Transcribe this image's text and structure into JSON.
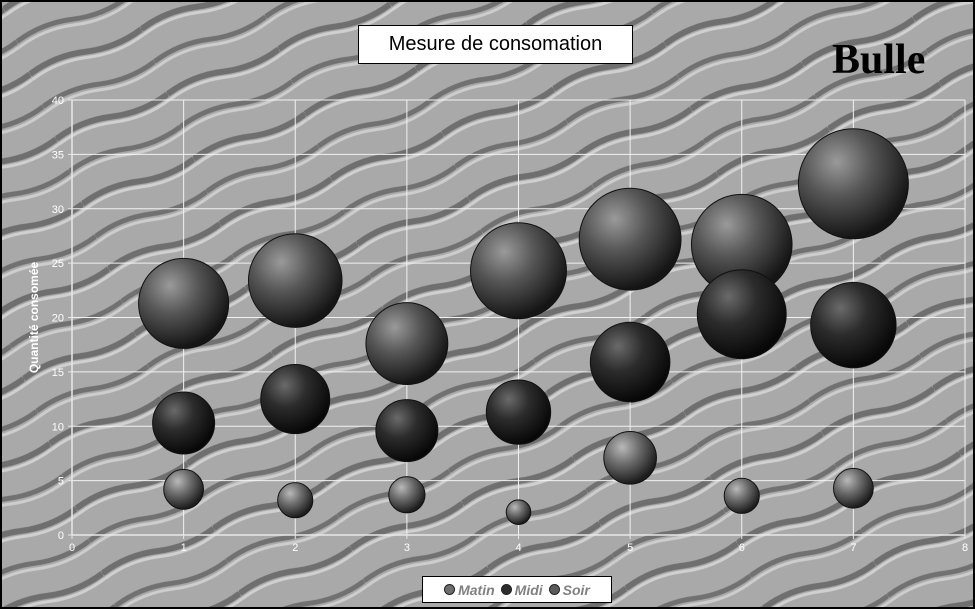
{
  "chart_data": {
    "type": "bubble",
    "title": "Mesure de consomation",
    "corner_label": "Bulle",
    "xlabel": "",
    "ylabel": "Quantité consomée",
    "xlim": [
      0,
      8
    ],
    "ylim": [
      0,
      40
    ],
    "x_ticks": [
      0,
      1,
      2,
      3,
      4,
      5,
      6,
      7,
      8
    ],
    "y_ticks": [
      0,
      5,
      10,
      15,
      20,
      25,
      30,
      35,
      40
    ],
    "grid": true,
    "legend_position": "bottom",
    "series": [
      {
        "name": "Matin",
        "color": "#6e6e6e",
        "points": [
          {
            "x": 1,
            "y": 4.2,
            "size": 3.4
          },
          {
            "x": 2,
            "y": 3.2,
            "size": 3.0
          },
          {
            "x": 3,
            "y": 3.7,
            "size": 3.1
          },
          {
            "x": 4,
            "y": 2.1,
            "size": 2.1
          },
          {
            "x": 5,
            "y": 7.1,
            "size": 4.5
          },
          {
            "x": 6,
            "y": 3.6,
            "size": 3.0
          },
          {
            "x": 7,
            "y": 4.3,
            "size": 3.4
          }
        ]
      },
      {
        "name": "Midi",
        "color": "#2c2c2c",
        "points": [
          {
            "x": 1,
            "y": 10.3,
            "size": 5.3
          },
          {
            "x": 2,
            "y": 12.5,
            "size": 5.9
          },
          {
            "x": 3,
            "y": 9.6,
            "size": 5.3
          },
          {
            "x": 4,
            "y": 11.3,
            "size": 5.5
          },
          {
            "x": 5,
            "y": 15.9,
            "size": 6.8
          },
          {
            "x": 6,
            "y": 20.3,
            "size": 7.6
          },
          {
            "x": 7,
            "y": 19.3,
            "size": 7.3
          }
        ]
      },
      {
        "name": "Soir",
        "color": "#5a5a5a",
        "points": [
          {
            "x": 1,
            "y": 21.3,
            "size": 7.7
          },
          {
            "x": 2,
            "y": 23.4,
            "size": 8.0
          },
          {
            "x": 3,
            "y": 17.6,
            "size": 7.0
          },
          {
            "x": 4,
            "y": 24.3,
            "size": 8.2
          },
          {
            "x": 5,
            "y": 27.2,
            "size": 8.7
          },
          {
            "x": 6,
            "y": 26.7,
            "size": 8.6
          },
          {
            "x": 7,
            "y": 32.3,
            "size": 9.4
          }
        ]
      }
    ]
  }
}
